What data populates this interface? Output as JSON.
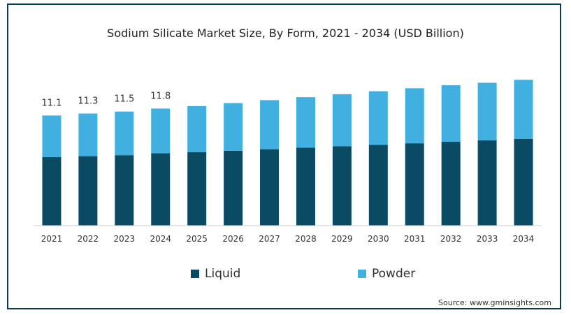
{
  "chart_data": {
    "type": "bar",
    "stacked": true,
    "title": "Sodium Silicate Market Size, By Form, 2021 - 2034 (USD Billion)",
    "categories": [
      "2021",
      "2022",
      "2023",
      "2024",
      "2025",
      "2026",
      "2027",
      "2028",
      "2029",
      "2030",
      "2031",
      "2032",
      "2033",
      "2034"
    ],
    "series": [
      {
        "name": "Liquid",
        "color": "#0b4a63",
        "values": [
          6.9,
          7.0,
          7.1,
          7.3,
          7.4,
          7.55,
          7.7,
          7.85,
          8.0,
          8.15,
          8.3,
          8.45,
          8.6,
          8.75
        ]
      },
      {
        "name": "Powder",
        "color": "#41afe0",
        "values": [
          4.2,
          4.3,
          4.4,
          4.5,
          4.65,
          4.8,
          4.95,
          5.1,
          5.25,
          5.4,
          5.55,
          5.7,
          5.8,
          5.95
        ]
      }
    ],
    "data_labels": [
      "11.1",
      "11.3",
      "11.5",
      "11.8"
    ],
    "ylim": [
      0,
      18
    ],
    "grid": false,
    "legend": "bottom"
  },
  "source": "Source: www.gminsights.com"
}
